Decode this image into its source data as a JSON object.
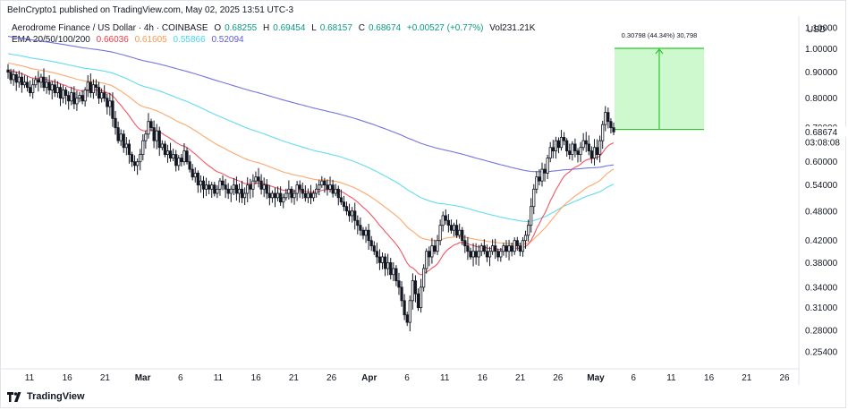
{
  "header": {
    "publisher": "BeInCrypto1 published on TradingView.com, May 02, 2025 13:51 UTC-3",
    "symbol": "Aerodrome Finance / US Dollar · 4h · COINBASE",
    "open_label": "O",
    "open": "0.68255",
    "high_label": "H",
    "high": "0.69454",
    "low_label": "L",
    "low": "0.68157",
    "close_label": "C",
    "close": "0.68674",
    "change": "+0.00527 (+0.77%)",
    "volume": "Vol231.21K",
    "ema_label": "EMA 20/50/100/200",
    "ema20": "0.66036",
    "ema50": "0.61605",
    "ema100": "0.55866",
    "ema200": "0.52094"
  },
  "currency": "USD",
  "brand": "TradingView",
  "colors": {
    "up": "#089981",
    "down": "#f23645",
    "candle": "#131722",
    "ema20": "#f23645",
    "ema50": "#ff9850",
    "ema100": "#45d6ef",
    "ema200": "#5b5cdb",
    "range_fill": "#bdf5bd",
    "range_line": "#2fc52f"
  },
  "chart_data": {
    "type": "candlestick",
    "y_scale": "log",
    "ylim": [
      0.235,
      1.16
    ],
    "x_ticks": [
      "11",
      "16",
      "21",
      "Mar",
      "6",
      "11",
      "16",
      "21",
      "26",
      "Apr",
      "6",
      "11",
      "16",
      "21",
      "26",
      "May",
      "6",
      "11",
      "16",
      "21",
      "26"
    ],
    "y_ticks": [
      "1.10000",
      "1.00000",
      "0.90000",
      "0.80000",
      "0.70000",
      "0.60000",
      "0.54000",
      "0.48000",
      "0.42000",
      "0.38000",
      "0.34000",
      "0.31000",
      "0.28000",
      "0.25400"
    ],
    "last_price": {
      "price": "0.68674",
      "countdown": "03:08:08",
      "value": 0.68674
    },
    "price_range": {
      "label": "0.30798 (44.34%) 30,798",
      "from": 0.69454,
      "to": 1.0025
    },
    "candle_closes": [
      0.9,
      0.87,
      0.89,
      0.86,
      0.88,
      0.85,
      0.86,
      0.84,
      0.82,
      0.85,
      0.87,
      0.86,
      0.88,
      0.84,
      0.86,
      0.83,
      0.85,
      0.82,
      0.84,
      0.8,
      0.83,
      0.81,
      0.79,
      0.82,
      0.78,
      0.8,
      0.81,
      0.79,
      0.83,
      0.86,
      0.82,
      0.85,
      0.84,
      0.8,
      0.82,
      0.8,
      0.77,
      0.79,
      0.73,
      0.7,
      0.66,
      0.68,
      0.64,
      0.65,
      0.62,
      0.6,
      0.59,
      0.6,
      0.62,
      0.66,
      0.68,
      0.72,
      0.7,
      0.66,
      0.69,
      0.64,
      0.65,
      0.62,
      0.63,
      0.61,
      0.62,
      0.59,
      0.61,
      0.6,
      0.63,
      0.6,
      0.58,
      0.56,
      0.57,
      0.54,
      0.55,
      0.53,
      0.54,
      0.53,
      0.54,
      0.52,
      0.53,
      0.55,
      0.54,
      0.53,
      0.52,
      0.53,
      0.54,
      0.52,
      0.53,
      0.51,
      0.52,
      0.54,
      0.53,
      0.55,
      0.56,
      0.55,
      0.53,
      0.54,
      0.52,
      0.51,
      0.52,
      0.51,
      0.52,
      0.5,
      0.51,
      0.52,
      0.53,
      0.51,
      0.52,
      0.54,
      0.53,
      0.52,
      0.51,
      0.52,
      0.51,
      0.52,
      0.53,
      0.54,
      0.55,
      0.54,
      0.53,
      0.54,
      0.52,
      0.53,
      0.51,
      0.5,
      0.49,
      0.48,
      0.47,
      0.48,
      0.46,
      0.45,
      0.44,
      0.43,
      0.44,
      0.42,
      0.41,
      0.4,
      0.39,
      0.38,
      0.39,
      0.37,
      0.38,
      0.36,
      0.37,
      0.35,
      0.34,
      0.32,
      0.3,
      0.29,
      0.32,
      0.35,
      0.33,
      0.31,
      0.34,
      0.37,
      0.4,
      0.39,
      0.41,
      0.4,
      0.42,
      0.45,
      0.47,
      0.46,
      0.45,
      0.44,
      0.45,
      0.43,
      0.44,
      0.42,
      0.41,
      0.4,
      0.39,
      0.4,
      0.39,
      0.4,
      0.41,
      0.4,
      0.39,
      0.4,
      0.41,
      0.4,
      0.39,
      0.4,
      0.41,
      0.4,
      0.41,
      0.4,
      0.42,
      0.41,
      0.4,
      0.42,
      0.43,
      0.45,
      0.49,
      0.53,
      0.56,
      0.55,
      0.58,
      0.57,
      0.61,
      0.64,
      0.63,
      0.66,
      0.64,
      0.67,
      0.66,
      0.63,
      0.62,
      0.65,
      0.63,
      0.62,
      0.64,
      0.66,
      0.65,
      0.63,
      0.61,
      0.64,
      0.62,
      0.66,
      0.71,
      0.75,
      0.72,
      0.7,
      0.68674
    ]
  }
}
